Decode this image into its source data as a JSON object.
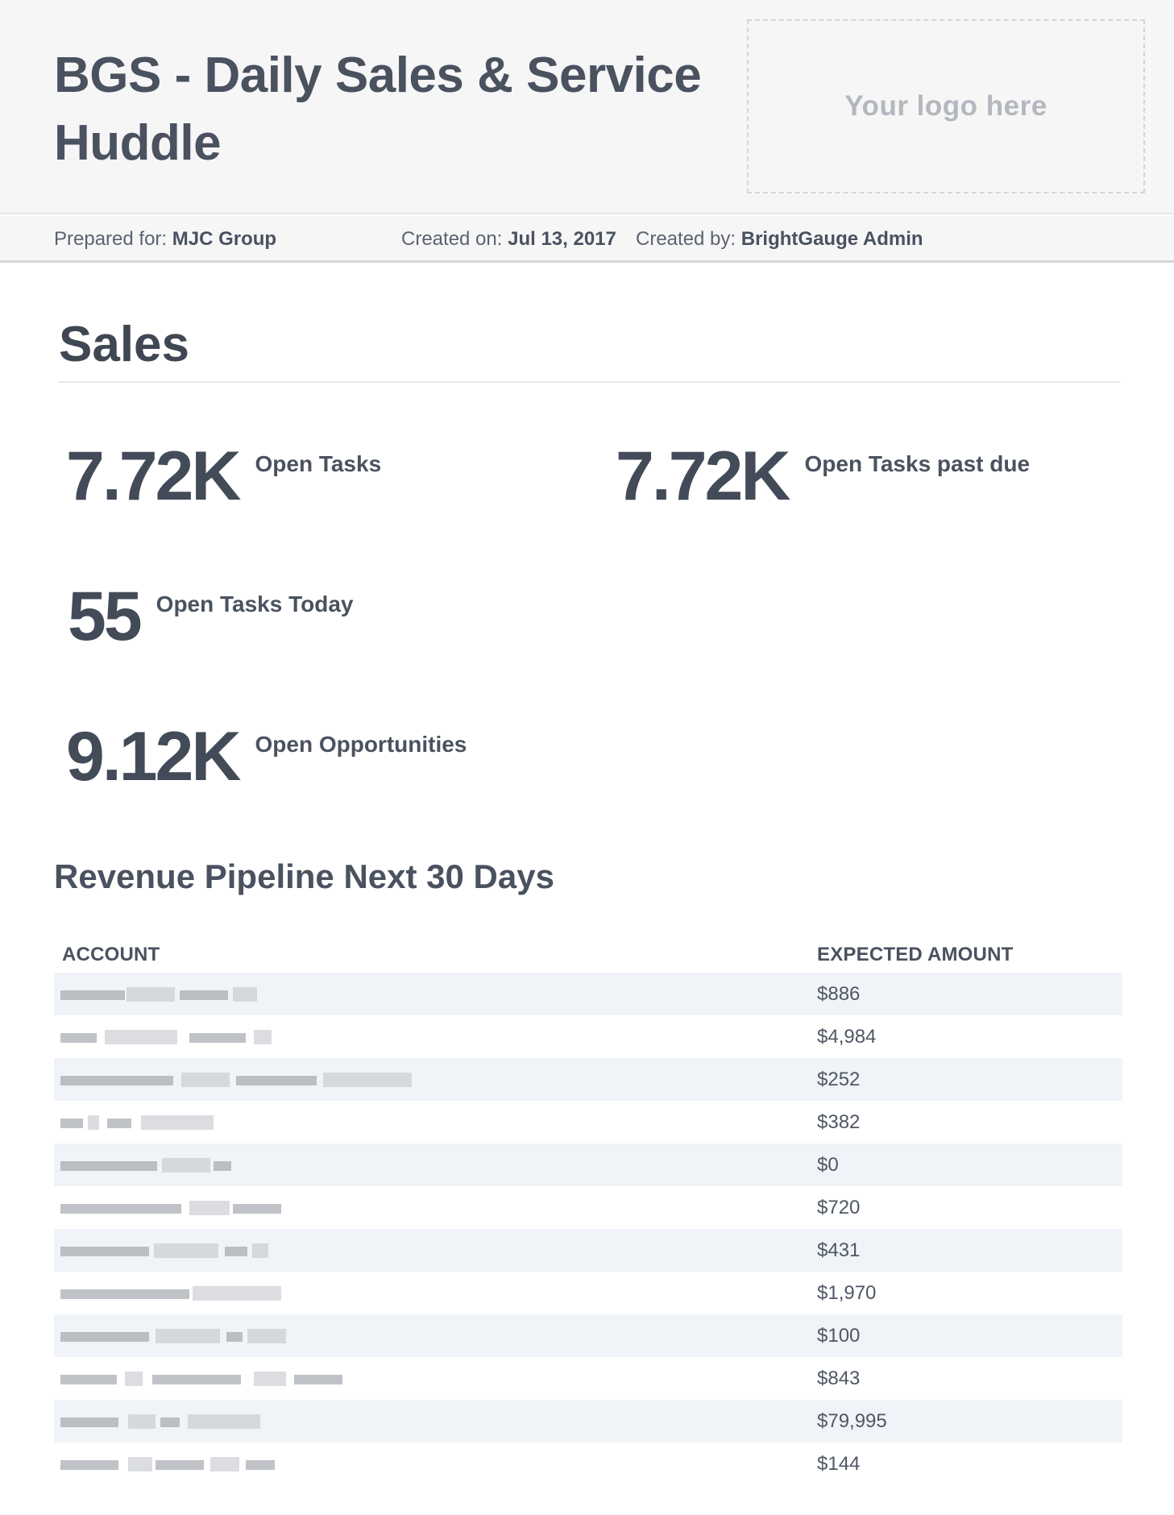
{
  "header": {
    "title": "BGS - Daily Sales & Service Huddle",
    "logo_placeholder": "Your logo here"
  },
  "meta": {
    "prepared_for_label": "Prepared for:",
    "prepared_for_value": "MJC Group",
    "created_on_label": "Created on:",
    "created_on_value": "Jul 13, 2017",
    "created_by_label": "Created by:",
    "created_by_value": "BrightGauge Admin"
  },
  "section": {
    "title": "Sales"
  },
  "metrics": [
    {
      "value": "7.72K",
      "label": "Open Tasks"
    },
    {
      "value": "7.72K",
      "label": "Open Tasks past due"
    },
    {
      "value": "55",
      "label": "Open Tasks Today"
    },
    {
      "value": "9.12K",
      "label": "Open Opportunities"
    }
  ],
  "pipeline": {
    "title": "Revenue Pipeline Next 30 Days",
    "columns": [
      "ACCOUNT",
      "EXPECTED AMOUNT"
    ],
    "rows": [
      {
        "amount": "$886"
      },
      {
        "amount": "$4,984"
      },
      {
        "amount": "$252"
      },
      {
        "amount": "$382"
      },
      {
        "amount": "$0"
      },
      {
        "amount": "$720"
      },
      {
        "amount": "$431"
      },
      {
        "amount": "$1,970"
      },
      {
        "amount": "$100"
      },
      {
        "amount": "$843"
      },
      {
        "amount": "$79,995"
      },
      {
        "amount": "$144"
      }
    ]
  }
}
